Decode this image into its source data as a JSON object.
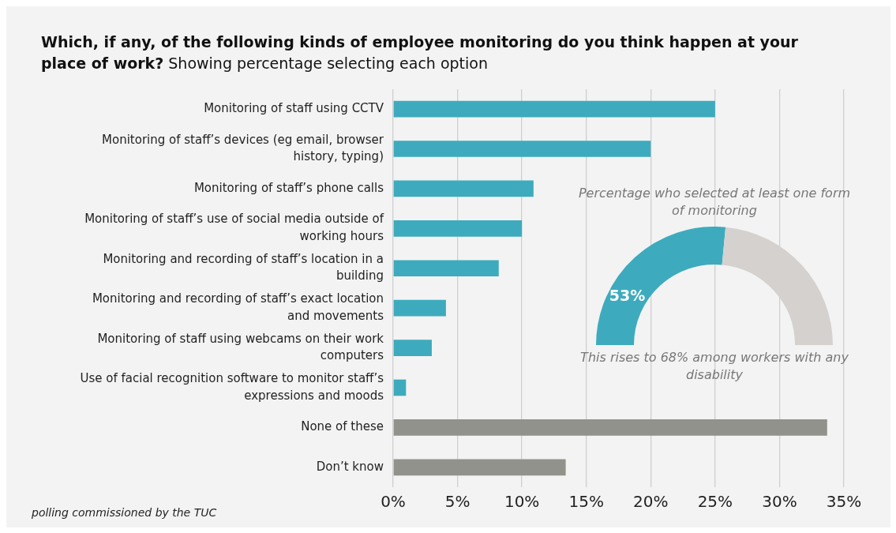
{
  "chart_data": [
    {
      "type": "bar",
      "orientation": "horizontal",
      "title": "Which, if any, of the following kinds of employee monitoring do you think happen at your place of work?",
      "subtitle": "Showing percentage selecting each option",
      "categories": [
        "Monitoring of staff using CCTV",
        "Monitoring of staff’s devices (eg email, browser history, typing)",
        "Monitoring of staff’s phone calls",
        "Monitoring of staff’s use of social media outside of working hours",
        "Monitoring and recording of staff’s location in a building",
        "Monitoring and recording of staff’s exact location and movements",
        "Monitoring of staff using webcams on their work computers",
        "Use of facial recognition software to monitor staff’s expressions and moods",
        "None of these",
        "Don’t know"
      ],
      "values": [
        25,
        20,
        10.9,
        10,
        8.2,
        4.1,
        3,
        1,
        33.7,
        13.4
      ],
      "colors": [
        "#3dabbd",
        "#3dabbd",
        "#3dabbd",
        "#3dabbd",
        "#3dabbd",
        "#3dabbd",
        "#3dabbd",
        "#3dabbd",
        "#92928d",
        "#92928d"
      ],
      "xlim": [
        0,
        35
      ],
      "xticks": [
        {
          "value": 0,
          "label": "0%"
        },
        {
          "value": 5,
          "label": "5%"
        },
        {
          "value": 10,
          "label": "10%"
        },
        {
          "value": 15,
          "label": "15%"
        },
        {
          "value": 20,
          "label": "20%"
        },
        {
          "value": 25,
          "label": "25%"
        },
        {
          "value": 30,
          "label": "30%"
        },
        {
          "value": 35,
          "label": "35%"
        }
      ],
      "grid": "x",
      "annotations": [
        "polling commissioned by the TUC"
      ]
    },
    {
      "type": "donut",
      "title": "Percentage who selected at least one form of monitoring",
      "categories": [
        null,
        null
      ],
      "values": [
        53,
        47
      ],
      "colors": [
        "#3dabbd",
        "#d4d1cf"
      ],
      "value_labels": [
        "53%",
        null
      ],
      "annotations": [
        "This rises to 68% among workers with any disability"
      ]
    }
  ]
}
